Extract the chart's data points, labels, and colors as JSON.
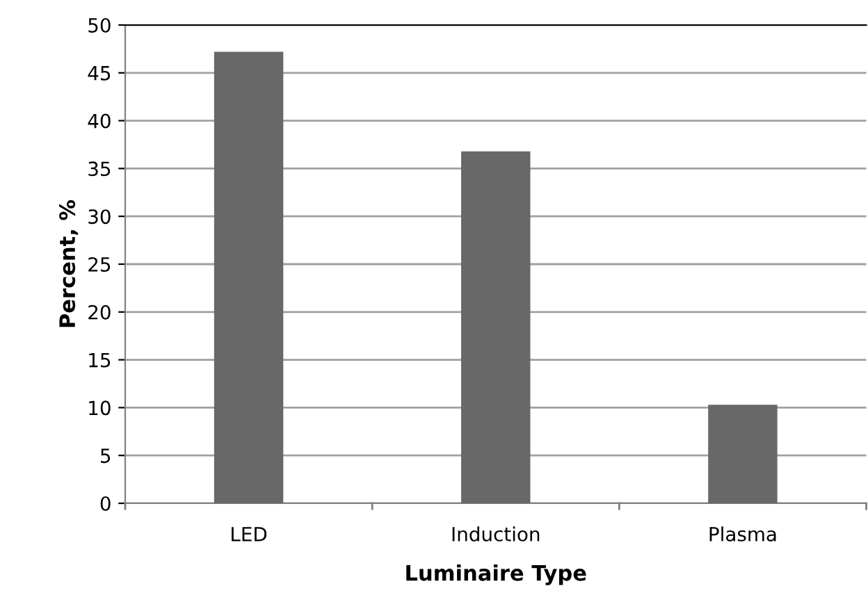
{
  "chart_data": {
    "type": "bar",
    "xlabel": "Luminaire Type",
    "ylabel": "Percent, %",
    "categories": [
      "LED",
      "Induction",
      "Plasma"
    ],
    "values": [
      47.2,
      36.8,
      10.3
    ],
    "color": "#686868",
    "ylim": [
      0,
      50
    ],
    "yticks": [
      0,
      5,
      10,
      15,
      20,
      25,
      30,
      35,
      40,
      45,
      50
    ],
    "grid": "y",
    "legend": false
  }
}
